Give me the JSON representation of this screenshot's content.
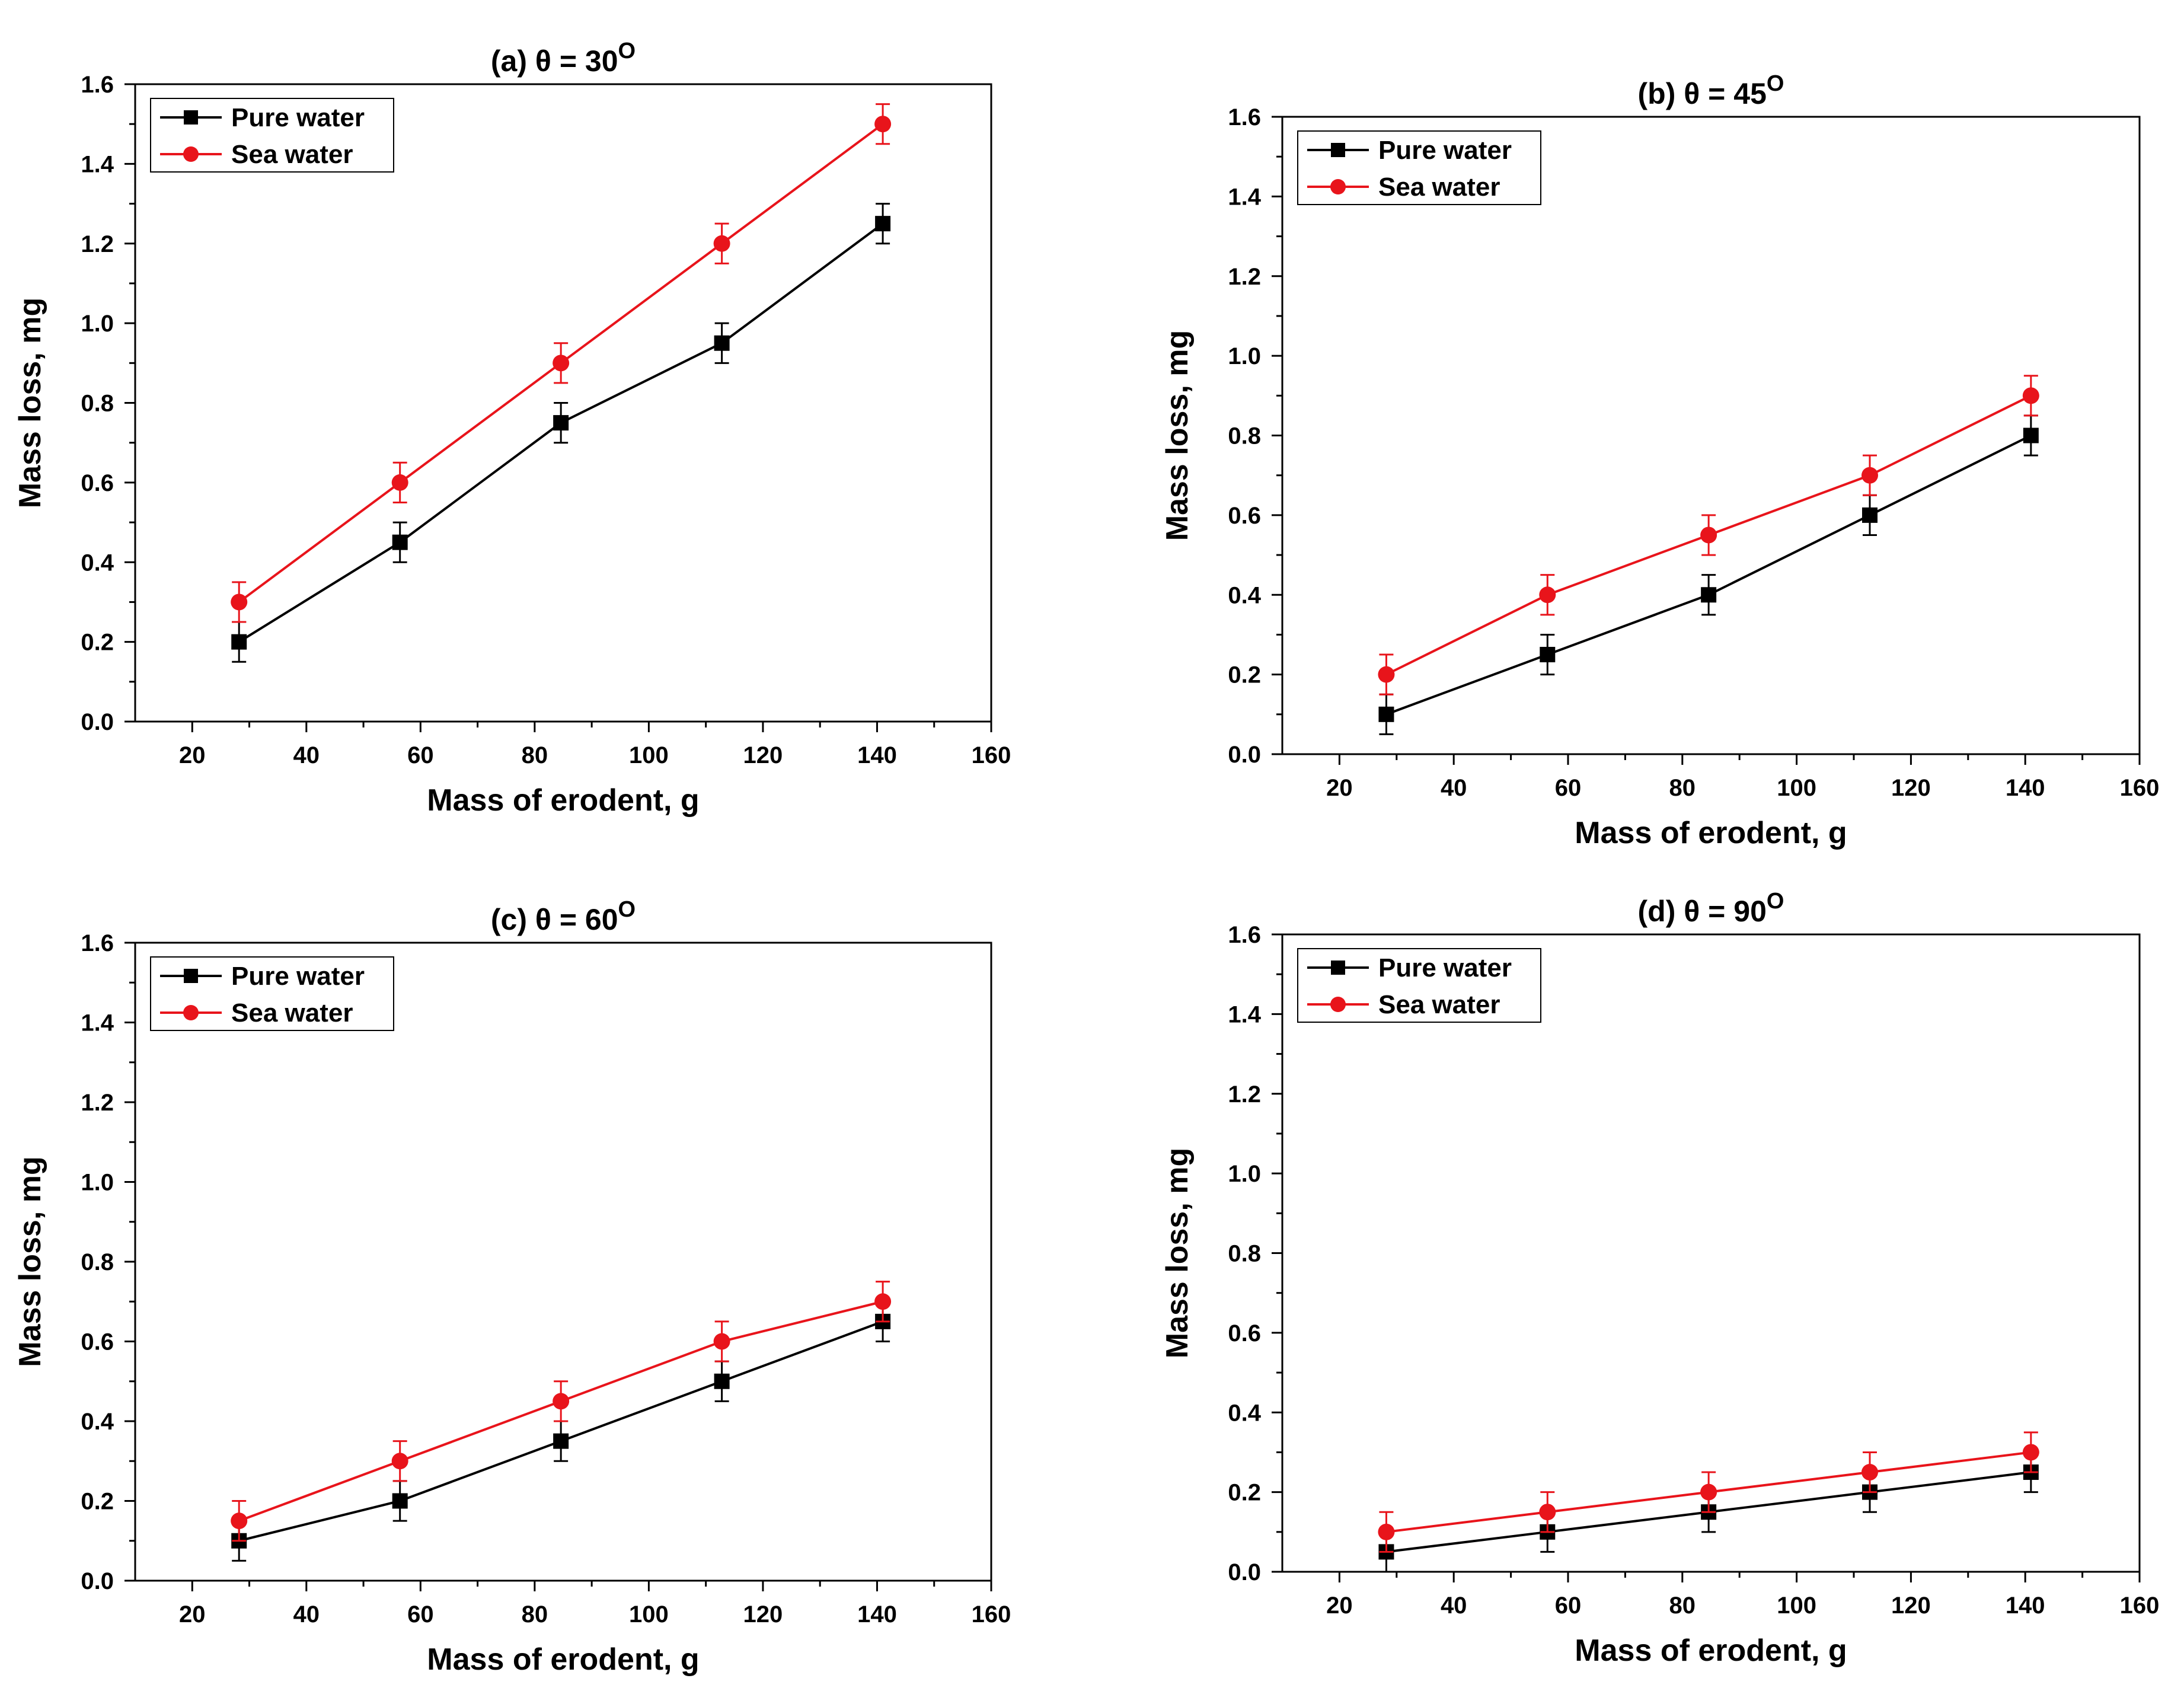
{
  "figure": {
    "description_free": true
  },
  "colors": {
    "pure": "#000000",
    "sea": "#e8141b",
    "axis": "#000000"
  },
  "chart_data": [
    {
      "type": "line",
      "id": "a",
      "title": "(a) θ = 30",
      "title_superscript": "O",
      "xlabel": "Mass of erodent, g",
      "ylabel": "Mass loss, mg",
      "xlim": [
        10,
        160
      ],
      "ylim": [
        0,
        1.6
      ],
      "xticks": [
        "20",
        "40",
        "60",
        "80",
        "100",
        "120",
        "140",
        "160"
      ],
      "yticks": [
        "0.0",
        "0.2",
        "0.4",
        "0.6",
        "0.8",
        "1.0",
        "1.2",
        "1.4",
        "1.6"
      ],
      "legend_position": "top-left",
      "x": [
        28.2,
        56.4,
        84.6,
        112.8,
        141
      ],
      "series": [
        {
          "name": "Pure water",
          "color": "#000000",
          "marker": "square",
          "values": [
            0.2,
            0.45,
            0.75,
            0.95,
            1.25
          ],
          "error": [
            0.05,
            0.05,
            0.05,
            0.05,
            0.05
          ]
        },
        {
          "name": "Sea water",
          "color": "#e8141b",
          "marker": "circle",
          "values": [
            0.3,
            0.6,
            0.9,
            1.2,
            1.5
          ],
          "error": [
            0.05,
            0.05,
            0.05,
            0.05,
            0.05
          ]
        }
      ]
    },
    {
      "type": "line",
      "id": "b",
      "title": "(b) θ = 45",
      "title_superscript": "O",
      "xlabel": "Mass of erodent, g",
      "ylabel": "Mass loss, mg",
      "xlim": [
        10,
        160
      ],
      "ylim": [
        0,
        1.6
      ],
      "xticks": [
        "20",
        "40",
        "60",
        "80",
        "100",
        "120",
        "140",
        "160"
      ],
      "yticks": [
        "0.0",
        "0.2",
        "0.4",
        "0.6",
        "0.8",
        "1.0",
        "1.2",
        "1.4",
        "1.6"
      ],
      "legend_position": "top-left",
      "x": [
        28.2,
        56.4,
        84.6,
        112.8,
        141
      ],
      "series": [
        {
          "name": "Pure water",
          "color": "#000000",
          "marker": "square",
          "values": [
            0.1,
            0.25,
            0.4,
            0.6,
            0.8
          ],
          "error": [
            0.05,
            0.05,
            0.05,
            0.05,
            0.05
          ]
        },
        {
          "name": "Sea water",
          "color": "#e8141b",
          "marker": "circle",
          "values": [
            0.2,
            0.4,
            0.55,
            0.7,
            0.9
          ],
          "error": [
            0.05,
            0.05,
            0.05,
            0.05,
            0.05
          ]
        }
      ]
    },
    {
      "type": "line",
      "id": "c",
      "title": "(c) θ = 60",
      "title_superscript": "O",
      "xlabel": "Mass of erodent, g",
      "ylabel": "Mass loss, mg",
      "xlim": [
        10,
        160
      ],
      "ylim": [
        0,
        1.6
      ],
      "xticks": [
        "20",
        "40",
        "60",
        "80",
        "100",
        "120",
        "140",
        "160"
      ],
      "yticks": [
        "0.0",
        "0.2",
        "0.4",
        "0.6",
        "0.8",
        "1.0",
        "1.2",
        "1.4",
        "1.6"
      ],
      "legend_position": "top-left",
      "x": [
        28.2,
        56.4,
        84.6,
        112.8,
        141
      ],
      "series": [
        {
          "name": "Pure water",
          "color": "#000000",
          "marker": "square",
          "values": [
            0.1,
            0.2,
            0.35,
            0.5,
            0.65
          ],
          "error": [
            0.05,
            0.05,
            0.05,
            0.05,
            0.05
          ]
        },
        {
          "name": "Sea water",
          "color": "#e8141b",
          "marker": "circle",
          "values": [
            0.15,
            0.3,
            0.45,
            0.6,
            0.7
          ],
          "error": [
            0.05,
            0.05,
            0.05,
            0.05,
            0.05
          ]
        }
      ]
    },
    {
      "type": "line",
      "id": "d",
      "title": "(d) θ = 90",
      "title_superscript": "O",
      "xlabel": "Mass of erodent, g",
      "ylabel": "Mass loss, mg",
      "xlim": [
        10,
        160
      ],
      "ylim": [
        0,
        1.6
      ],
      "xticks": [
        "20",
        "40",
        "60",
        "80",
        "100",
        "120",
        "140",
        "160"
      ],
      "yticks": [
        "0.0",
        "0.2",
        "0.4",
        "0.6",
        "0.8",
        "1.0",
        "1.2",
        "1.4",
        "1.6"
      ],
      "legend_position": "top-left",
      "x": [
        28.2,
        56.4,
        84.6,
        112.8,
        141
      ],
      "series": [
        {
          "name": "Pure water",
          "color": "#000000",
          "marker": "square",
          "values": [
            0.05,
            0.1,
            0.15,
            0.2,
            0.25
          ],
          "error": [
            0.05,
            0.05,
            0.05,
            0.05,
            0.05
          ]
        },
        {
          "name": "Sea water",
          "color": "#e8141b",
          "marker": "circle",
          "values": [
            0.1,
            0.15,
            0.2,
            0.25,
            0.3
          ],
          "error": [
            0.05,
            0.05,
            0.05,
            0.05,
            0.05
          ]
        }
      ]
    }
  ]
}
